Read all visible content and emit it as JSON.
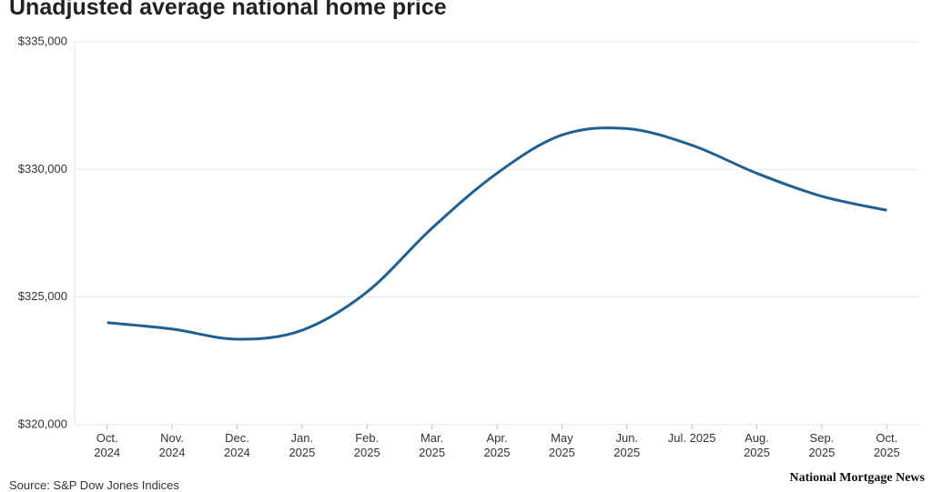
{
  "chart_data": {
    "type": "line",
    "title": "Unadjusted average national home price",
    "categories": [
      "Oct.\n2024",
      "Nov.\n2024",
      "Dec.\n2024",
      "Jan.\n2025",
      "Feb.\n2025",
      "Mar.\n2025",
      "Apr.\n2025",
      "May\n2025",
      "Jun.\n2025",
      "Jul. 2025",
      "Aug.\n2025",
      "Sep.\n2025",
      "Oct.\n2025"
    ],
    "values": [
      324000,
      323750,
      323350,
      323700,
      325200,
      327700,
      329850,
      331350,
      331600,
      330950,
      329850,
      328950,
      328400
    ],
    "color": "#1f5f91",
    "ylim": [
      320000,
      335000
    ],
    "yticks": [
      {
        "value": 320000,
        "label": "$320,000"
      },
      {
        "value": 325000,
        "label": "$325,000"
      },
      {
        "value": 330000,
        "label": "$330,000"
      },
      {
        "value": 335000,
        "label": "$335,000"
      }
    ],
    "grid": true,
    "source": "Source: S&P Dow Jones Indices",
    "credit": "National Mortgage News"
  }
}
